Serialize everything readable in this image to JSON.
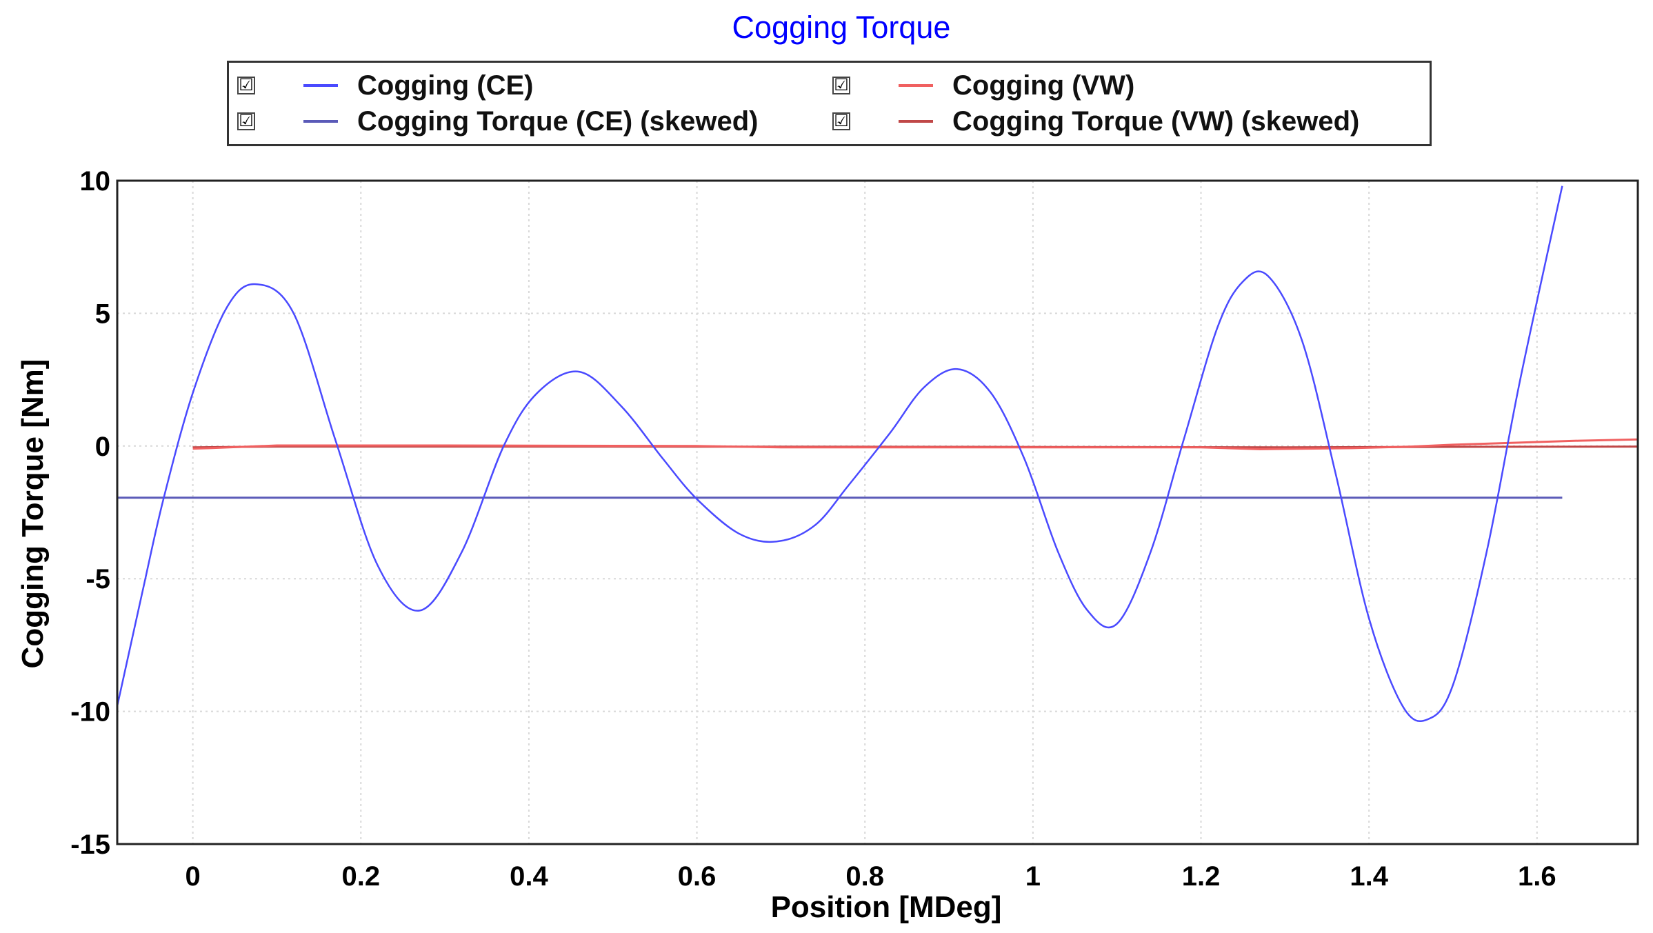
{
  "chart_data": {
    "type": "line",
    "title": "Cogging Torque",
    "xlabel": "Position [MDeg]",
    "ylabel": "Cogging Torque [Nm]",
    "xlim": [
      -0.09,
      1.72
    ],
    "ylim": [
      -15,
      10
    ],
    "xticks": [
      0,
      0.2,
      0.4,
      0.6,
      0.8,
      1,
      1.2,
      1.4,
      1.6
    ],
    "xtick_labels": [
      "0",
      "0.2",
      "0.4",
      "0.6",
      "0.8",
      "1",
      "1.2",
      "1.4",
      "1.6"
    ],
    "yticks": [
      10,
      5,
      0,
      -5,
      -10,
      -15
    ],
    "ytick_labels": [
      "10",
      "5",
      "0",
      "-5",
      "-10",
      "-15"
    ],
    "grid": true,
    "legend_position": "top",
    "series": [
      {
        "name": "Cogging (CE)",
        "color": "#4a4aff",
        "x": [
          -0.09,
          -0.06,
          -0.035,
          0,
          0.04,
          0.075,
          0.12,
          0.17,
          0.22,
          0.27,
          0.32,
          0.37,
          0.41,
          0.46,
          0.51,
          0.56,
          0.6,
          0.65,
          0.695,
          0.74,
          0.78,
          0.83,
          0.87,
          0.91,
          0.95,
          0.99,
          1.03,
          1.065,
          1.1,
          1.14,
          1.18,
          1.22,
          1.25,
          1.28,
          1.32,
          1.36,
          1.4,
          1.44,
          1.47,
          1.5,
          1.54,
          1.58,
          1.63
        ],
        "y": [
          -9.8,
          -5.5,
          -2,
          2,
          5.2,
          6.1,
          5,
          0.2,
          -4.5,
          -6.2,
          -4,
          0,
          2,
          2.8,
          1.5,
          -0.5,
          -2,
          -3.3,
          -3.6,
          -3,
          -1.5,
          0.5,
          2.2,
          2.9,
          2,
          -0.5,
          -4,
          -6.2,
          -6.7,
          -4,
          0.3,
          4.5,
          6.2,
          6.4,
          4,
          -1,
          -6.5,
          -9.8,
          -10.3,
          -9,
          -4,
          2.5,
          9.8
        ]
      },
      {
        "name": "Cogging Torque (CE) (skewed)",
        "color": "#5a5ab8",
        "x": [
          -0.09,
          1.63
        ],
        "y": [
          -1.95,
          -1.95
        ]
      },
      {
        "name": "Cogging (VW)",
        "color": "#f06060",
        "x": [
          0,
          0.02,
          0.1,
          0.3,
          0.6,
          0.7,
          1.0,
          1.2,
          1.27,
          1.38,
          1.45,
          1.5,
          1.55,
          1.6,
          1.65,
          1.72
        ],
        "y": [
          -0.1,
          -0.08,
          0.02,
          0.02,
          0.0,
          -0.05,
          -0.05,
          -0.05,
          -0.12,
          -0.08,
          -0.02,
          0.05,
          0.1,
          0.15,
          0.2,
          0.25
        ]
      },
      {
        "name": "Cogging Torque (VW) (skewed)",
        "color": "#c04848",
        "x": [
          0,
          0.1,
          0.5,
          0.9,
          1.3,
          1.5,
          1.72
        ],
        "y": [
          -0.05,
          -0.02,
          -0.02,
          -0.03,
          -0.05,
          -0.03,
          -0.02
        ]
      }
    ]
  },
  "legend": {
    "check_glyph": "☑",
    "entries": [
      {
        "label": "Cogging (CE)",
        "color": "#4a4aff",
        "checked": true
      },
      {
        "label": "Cogging Torque (CE) (skewed)",
        "color": "#5a5ab8",
        "checked": true
      },
      {
        "label": "Cogging (VW)",
        "color": "#f06060",
        "checked": true
      },
      {
        "label": "Cogging Torque (VW) (skewed)",
        "color": "#c04848",
        "checked": true
      }
    ]
  }
}
